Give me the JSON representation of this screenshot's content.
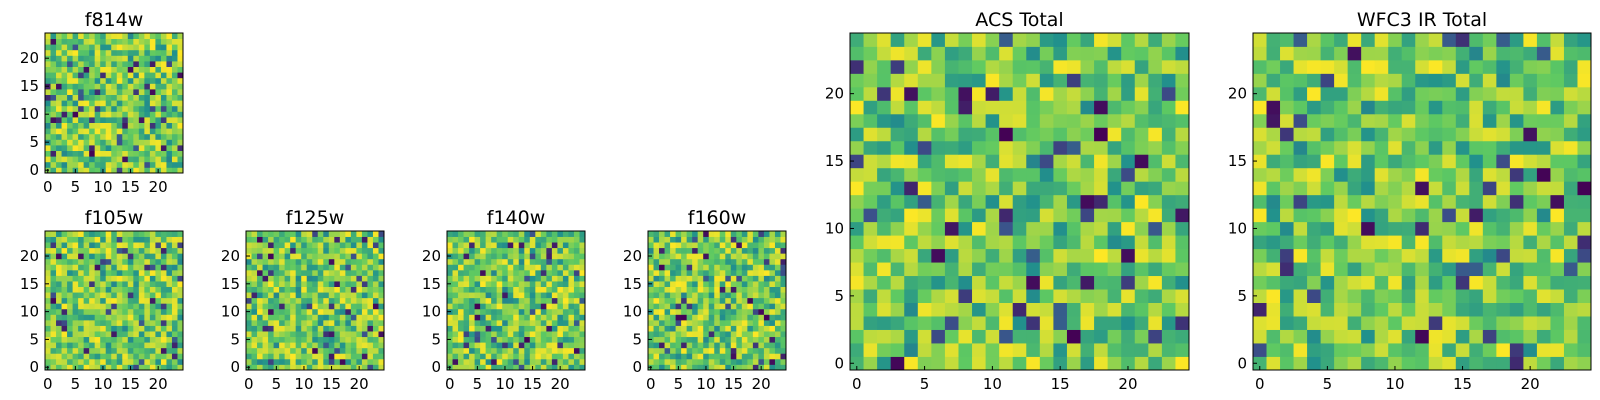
{
  "figure": {
    "colormap": [
      "#440154",
      "#3b528b",
      "#21918c",
      "#5ec962",
      "#fde725"
    ]
  },
  "chart_data": [
    {
      "id": "f814w",
      "type": "heatmap",
      "title": "f814w",
      "grid_size": 25,
      "xlim": [
        0,
        24
      ],
      "ylim": [
        0,
        24
      ],
      "xticks": [
        0,
        5,
        10,
        15,
        20
      ],
      "yticks": [
        0,
        5,
        10,
        15,
        20
      ],
      "seed": 814
    },
    {
      "id": "f105w",
      "type": "heatmap",
      "title": "f105w",
      "grid_size": 25,
      "xlim": [
        0,
        24
      ],
      "ylim": [
        0,
        24
      ],
      "xticks": [
        0,
        5,
        10,
        15,
        20
      ],
      "yticks": [
        0,
        5,
        10,
        15,
        20
      ],
      "seed": 105
    },
    {
      "id": "f125w",
      "type": "heatmap",
      "title": "f125w",
      "grid_size": 25,
      "xlim": [
        0,
        24
      ],
      "ylim": [
        0,
        24
      ],
      "xticks": [
        0,
        5,
        10,
        15,
        20
      ],
      "yticks": [
        0,
        5,
        10,
        15,
        20
      ],
      "seed": 125
    },
    {
      "id": "f140w",
      "type": "heatmap",
      "title": "f140w",
      "grid_size": 25,
      "xlim": [
        0,
        24
      ],
      "ylim": [
        0,
        24
      ],
      "xticks": [
        0,
        5,
        10,
        15,
        20
      ],
      "yticks": [
        0,
        5,
        10,
        15,
        20
      ],
      "seed": 140
    },
    {
      "id": "f160w",
      "type": "heatmap",
      "title": "f160w",
      "grid_size": 25,
      "xlim": [
        0,
        24
      ],
      "ylim": [
        0,
        24
      ],
      "xticks": [
        0,
        5,
        10,
        15,
        20
      ],
      "yticks": [
        0,
        5,
        10,
        15,
        20
      ],
      "seed": 160
    },
    {
      "id": "acs-total",
      "type": "heatmap",
      "title": "ACS Total",
      "grid_size": 25,
      "xlim": [
        0,
        24
      ],
      "ylim": [
        0,
        24
      ],
      "xticks": [
        0,
        5,
        10,
        15,
        20
      ],
      "yticks": [
        0,
        5,
        10,
        15,
        20
      ],
      "seed": 7
    },
    {
      "id": "wfc3-ir-total",
      "type": "heatmap",
      "title": "WFC3 IR Total",
      "grid_size": 25,
      "xlim": [
        0,
        24
      ],
      "ylim": [
        0,
        24
      ],
      "xticks": [
        0,
        5,
        10,
        15,
        20
      ],
      "yticks": [
        0,
        5,
        10,
        15,
        20
      ],
      "seed": 3
    }
  ]
}
